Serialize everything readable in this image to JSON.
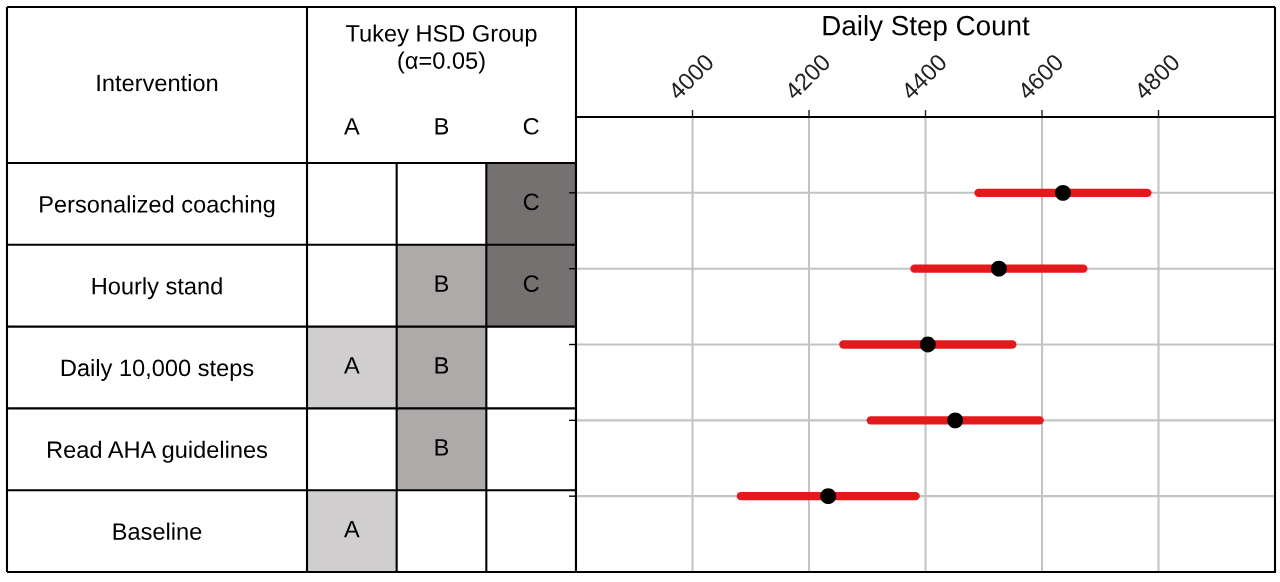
{
  "chart_data": [
    {
      "type": "heatmap",
      "title": "Tukey HSD Group\n(α=0.05)",
      "ylabel": "Intervention",
      "categories": [
        "A",
        "B",
        "C"
      ],
      "y_categories": [
        "Personalized coaching",
        "Hourly stand",
        "Daily 10,000 steps",
        "Read AHA guidelines",
        "Baseline"
      ],
      "cells": [
        [
          null,
          null,
          "C"
        ],
        [
          null,
          "B",
          "C"
        ],
        [
          "A",
          "B",
          null
        ],
        [
          null,
          "B",
          null
        ],
        [
          "A",
          null,
          null
        ]
      ],
      "colors": [
        "#d0cece",
        "#aeaaaa",
        "#767171"
      ],
      "grid": true
    },
    {
      "type": "scatter",
      "orientation": "horizontal",
      "xlabel": "Daily Step Count",
      "categories": [
        null,
        null,
        null,
        null,
        null
      ],
      "values": [
        4636,
        4526,
        4404,
        4451,
        4233
      ],
      "errors": [
        145,
        145,
        145,
        145,
        150
      ],
      "color": "#000000",
      "xlim": [
        3800,
        5000
      ],
      "xticks": [
        4000,
        4200,
        4400,
        4600,
        4800
      ],
      "grid": true,
      "marker": "circle",
      "tick_labels": "x"
    }
  ]
}
